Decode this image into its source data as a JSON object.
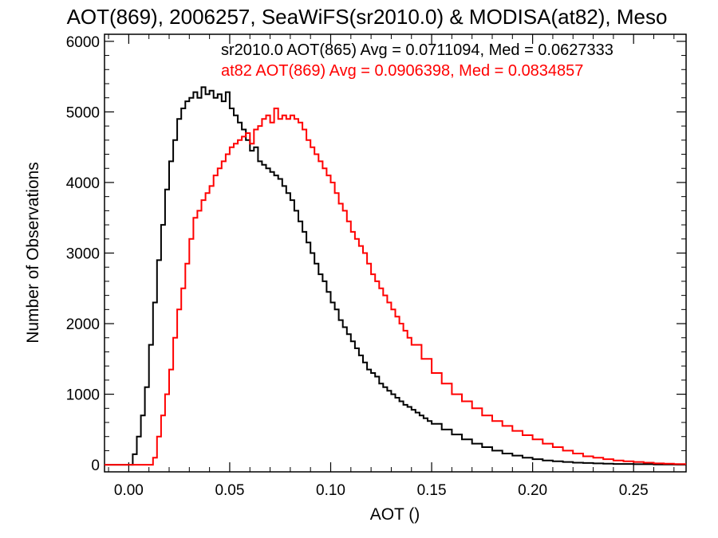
{
  "chart_data": {
    "type": "line",
    "title": "AOT(869), 2006257, SeaWiFS(sr2010.0) & MODISA(at82), Meso",
    "xlabel": "AOT ()",
    "ylabel": "Number of Observations",
    "xlim": [
      -0.012,
      0.276
    ],
    "ylim": [
      -100,
      6100
    ],
    "x_ticks": [
      0.0,
      0.05,
      0.1,
      0.15,
      0.2,
      0.25
    ],
    "x_tick_labels": [
      "0.00",
      "0.05",
      "0.10",
      "0.15",
      "0.20",
      "0.25"
    ],
    "y_ticks": [
      0,
      1000,
      2000,
      3000,
      4000,
      5000,
      6000
    ],
    "y_tick_labels": [
      "0",
      "1000",
      "2000",
      "3000",
      "4000",
      "5000",
      "6000"
    ],
    "grid": false,
    "legend_position": "top-right",
    "series": [
      {
        "name": "sr2010.0 AOT(865) Avg = 0.0711094, Med = 0.0627333",
        "color": "#000000",
        "x": [
          -0.012,
          0.0,
          0.002,
          0.004,
          0.006,
          0.008,
          0.01,
          0.012,
          0.014,
          0.016,
          0.018,
          0.02,
          0.022,
          0.024,
          0.026,
          0.028,
          0.03,
          0.032,
          0.034,
          0.036,
          0.038,
          0.04,
          0.042,
          0.044,
          0.046,
          0.048,
          0.05,
          0.052,
          0.054,
          0.056,
          0.058,
          0.06,
          0.062,
          0.064,
          0.066,
          0.068,
          0.07,
          0.072,
          0.074,
          0.076,
          0.078,
          0.08,
          0.082,
          0.084,
          0.086,
          0.088,
          0.09,
          0.092,
          0.094,
          0.096,
          0.098,
          0.1,
          0.102,
          0.104,
          0.106,
          0.108,
          0.11,
          0.112,
          0.114,
          0.116,
          0.118,
          0.12,
          0.122,
          0.124,
          0.126,
          0.128,
          0.13,
          0.132,
          0.134,
          0.136,
          0.138,
          0.14,
          0.142,
          0.144,
          0.146,
          0.148,
          0.15,
          0.155,
          0.16,
          0.165,
          0.17,
          0.175,
          0.18,
          0.185,
          0.19,
          0.195,
          0.2,
          0.205,
          0.21,
          0.215,
          0.22,
          0.225,
          0.23,
          0.235,
          0.24,
          0.25,
          0.26,
          0.27,
          0.276
        ],
        "y": [
          0,
          0,
          150,
          400,
          700,
          1100,
          1700,
          2300,
          2900,
          3400,
          3900,
          4300,
          4600,
          4900,
          5050,
          5150,
          5200,
          5280,
          5200,
          5350,
          5250,
          5300,
          5200,
          5250,
          5150,
          5280,
          5050,
          4950,
          4850,
          4750,
          4600,
          4450,
          4500,
          4300,
          4250,
          4200,
          4150,
          4100,
          4050,
          3950,
          3850,
          3750,
          3600,
          3450,
          3300,
          3150,
          3000,
          2850,
          2700,
          2600,
          2450,
          2300,
          2200,
          2050,
          1950,
          1850,
          1750,
          1650,
          1550,
          1450,
          1350,
          1300,
          1250,
          1150,
          1100,
          1050,
          1000,
          950,
          900,
          850,
          820,
          780,
          740,
          700,
          660,
          620,
          580,
          500,
          430,
          360,
          300,
          250,
          200,
          160,
          130,
          100,
          80,
          60,
          50,
          40,
          30,
          25,
          20,
          15,
          12,
          8,
          5,
          3,
          2
        ]
      },
      {
        "name": "at82 AOT(869) Avg = 0.0906398, Med = 0.0834857",
        "color": "#ff0000",
        "x": [
          -0.012,
          0.01,
          0.012,
          0.014,
          0.016,
          0.018,
          0.02,
          0.022,
          0.024,
          0.026,
          0.028,
          0.03,
          0.032,
          0.034,
          0.036,
          0.038,
          0.04,
          0.042,
          0.044,
          0.046,
          0.048,
          0.05,
          0.052,
          0.054,
          0.056,
          0.058,
          0.06,
          0.062,
          0.064,
          0.066,
          0.068,
          0.07,
          0.072,
          0.074,
          0.076,
          0.078,
          0.08,
          0.082,
          0.084,
          0.086,
          0.088,
          0.09,
          0.092,
          0.094,
          0.096,
          0.098,
          0.1,
          0.102,
          0.104,
          0.106,
          0.108,
          0.11,
          0.112,
          0.114,
          0.116,
          0.118,
          0.12,
          0.122,
          0.124,
          0.126,
          0.128,
          0.13,
          0.132,
          0.134,
          0.136,
          0.138,
          0.14,
          0.145,
          0.15,
          0.155,
          0.16,
          0.165,
          0.17,
          0.175,
          0.18,
          0.185,
          0.19,
          0.195,
          0.2,
          0.205,
          0.21,
          0.215,
          0.22,
          0.225,
          0.23,
          0.235,
          0.24,
          0.245,
          0.25,
          0.255,
          0.26,
          0.265,
          0.27,
          0.276
        ],
        "y": [
          0,
          0,
          100,
          400,
          700,
          1000,
          1350,
          1800,
          2200,
          2500,
          2850,
          3200,
          3500,
          3600,
          3750,
          3850,
          3950,
          4100,
          4200,
          4300,
          4400,
          4500,
          4550,
          4600,
          4650,
          4700,
          4550,
          4750,
          4800,
          4900,
          4950,
          4850,
          5050,
          4900,
          4950,
          4900,
          4950,
          4900,
          4850,
          4750,
          4600,
          4500,
          4400,
          4300,
          4200,
          4100,
          4000,
          3850,
          3700,
          3600,
          3450,
          3300,
          3200,
          3100,
          3000,
          2850,
          2700,
          2600,
          2500,
          2400,
          2300,
          2200,
          2100,
          2000,
          1900,
          1800,
          1700,
          1500,
          1300,
          1150,
          1000,
          900,
          800,
          700,
          620,
          550,
          480,
          420,
          360,
          300,
          250,
          200,
          160,
          120,
          100,
          80,
          60,
          50,
          40,
          30,
          20,
          15,
          10,
          5
        ]
      }
    ]
  }
}
